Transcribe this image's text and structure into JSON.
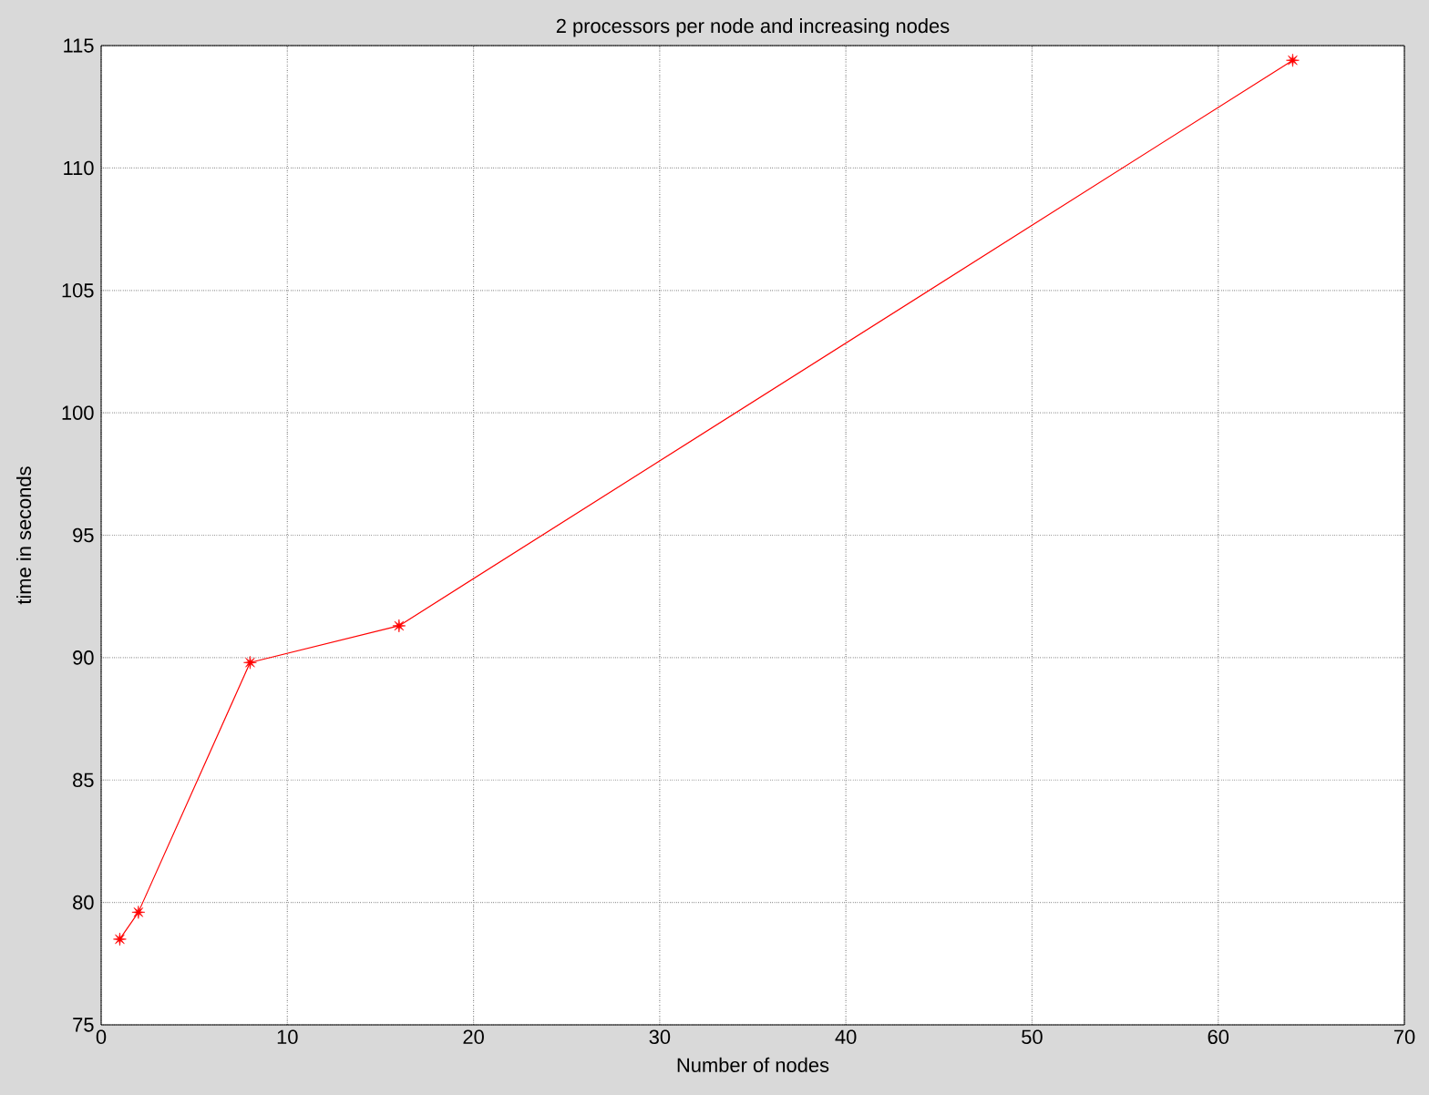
{
  "chart_data": {
    "type": "line",
    "title": "2 processors per node and increasing nodes",
    "xlabel": "Number of nodes",
    "ylabel": "time in seconds",
    "x": [
      1,
      2,
      8,
      16,
      64
    ],
    "series": [
      {
        "color": "#ff0000",
        "values": [
          78.5,
          79.6,
          89.8,
          91.3,
          114.4
        ]
      }
    ],
    "xlim": [
      0,
      70
    ],
    "ylim": [
      75,
      115
    ],
    "xticks": [
      0,
      10,
      20,
      30,
      40,
      50,
      60,
      70
    ],
    "yticks": [
      75,
      80,
      85,
      90,
      95,
      100,
      105,
      110,
      115
    ],
    "grid": true,
    "marker": "star",
    "line_style": "solid"
  }
}
